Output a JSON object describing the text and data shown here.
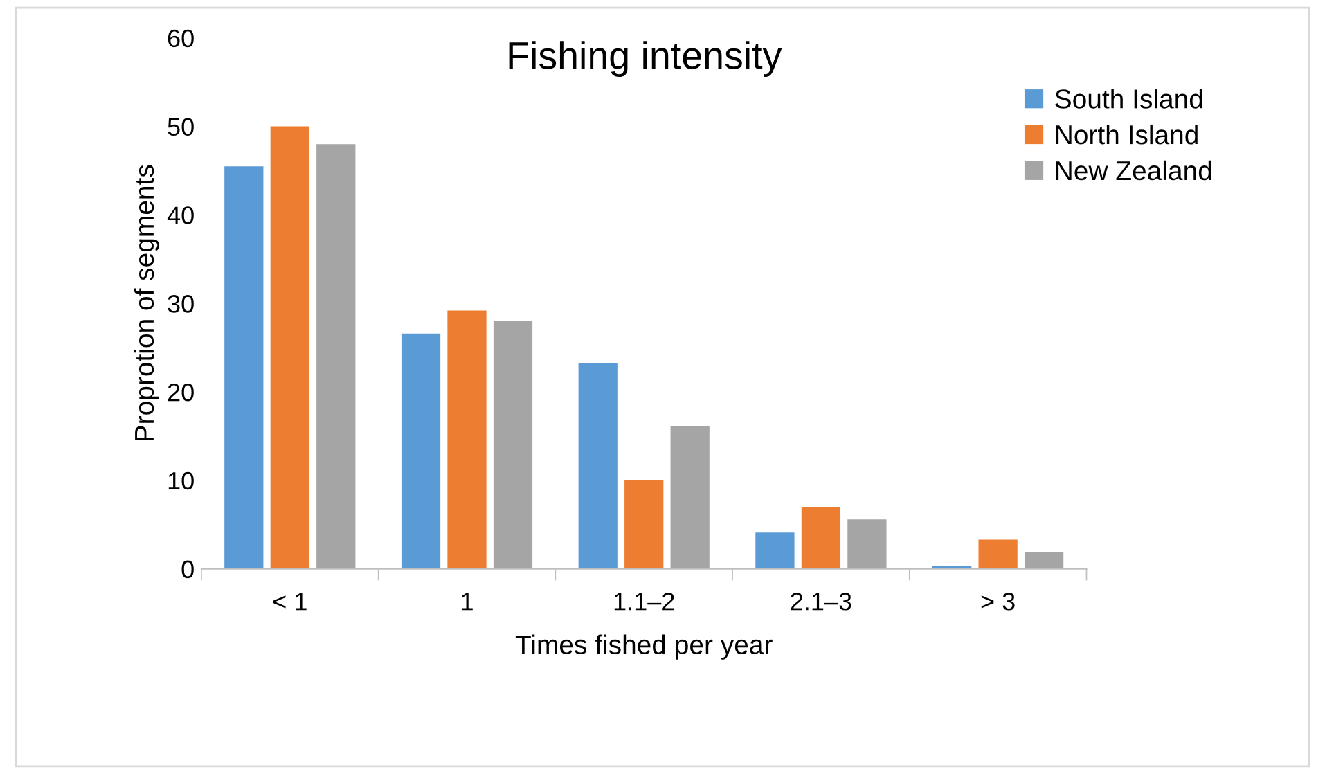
{
  "chart_data": {
    "type": "bar",
    "title": "Fishing intensity",
    "xlabel": "Times fished per year",
    "ylabel": "Proprotion of segments",
    "categories": [
      "< 1",
      "1",
      "1.1–2",
      "2.1–3",
      "> 3"
    ],
    "series": [
      {
        "name": "South Island",
        "color": "#5b9bd5",
        "values": [
          45.5,
          26.6,
          23.3,
          4.1,
          0.3
        ]
      },
      {
        "name": "North Island",
        "color": "#ed7d31",
        "values": [
          50,
          29.2,
          10,
          7,
          3.3
        ]
      },
      {
        "name": "New Zealand",
        "color": "#a5a5a5",
        "values": [
          48,
          28,
          16.1,
          5.6,
          1.9
        ]
      }
    ],
    "ylim": [
      0,
      60
    ],
    "yticks": [
      0,
      10,
      20,
      30,
      40,
      50,
      60
    ],
    "grid": false,
    "legend": "top right"
  }
}
